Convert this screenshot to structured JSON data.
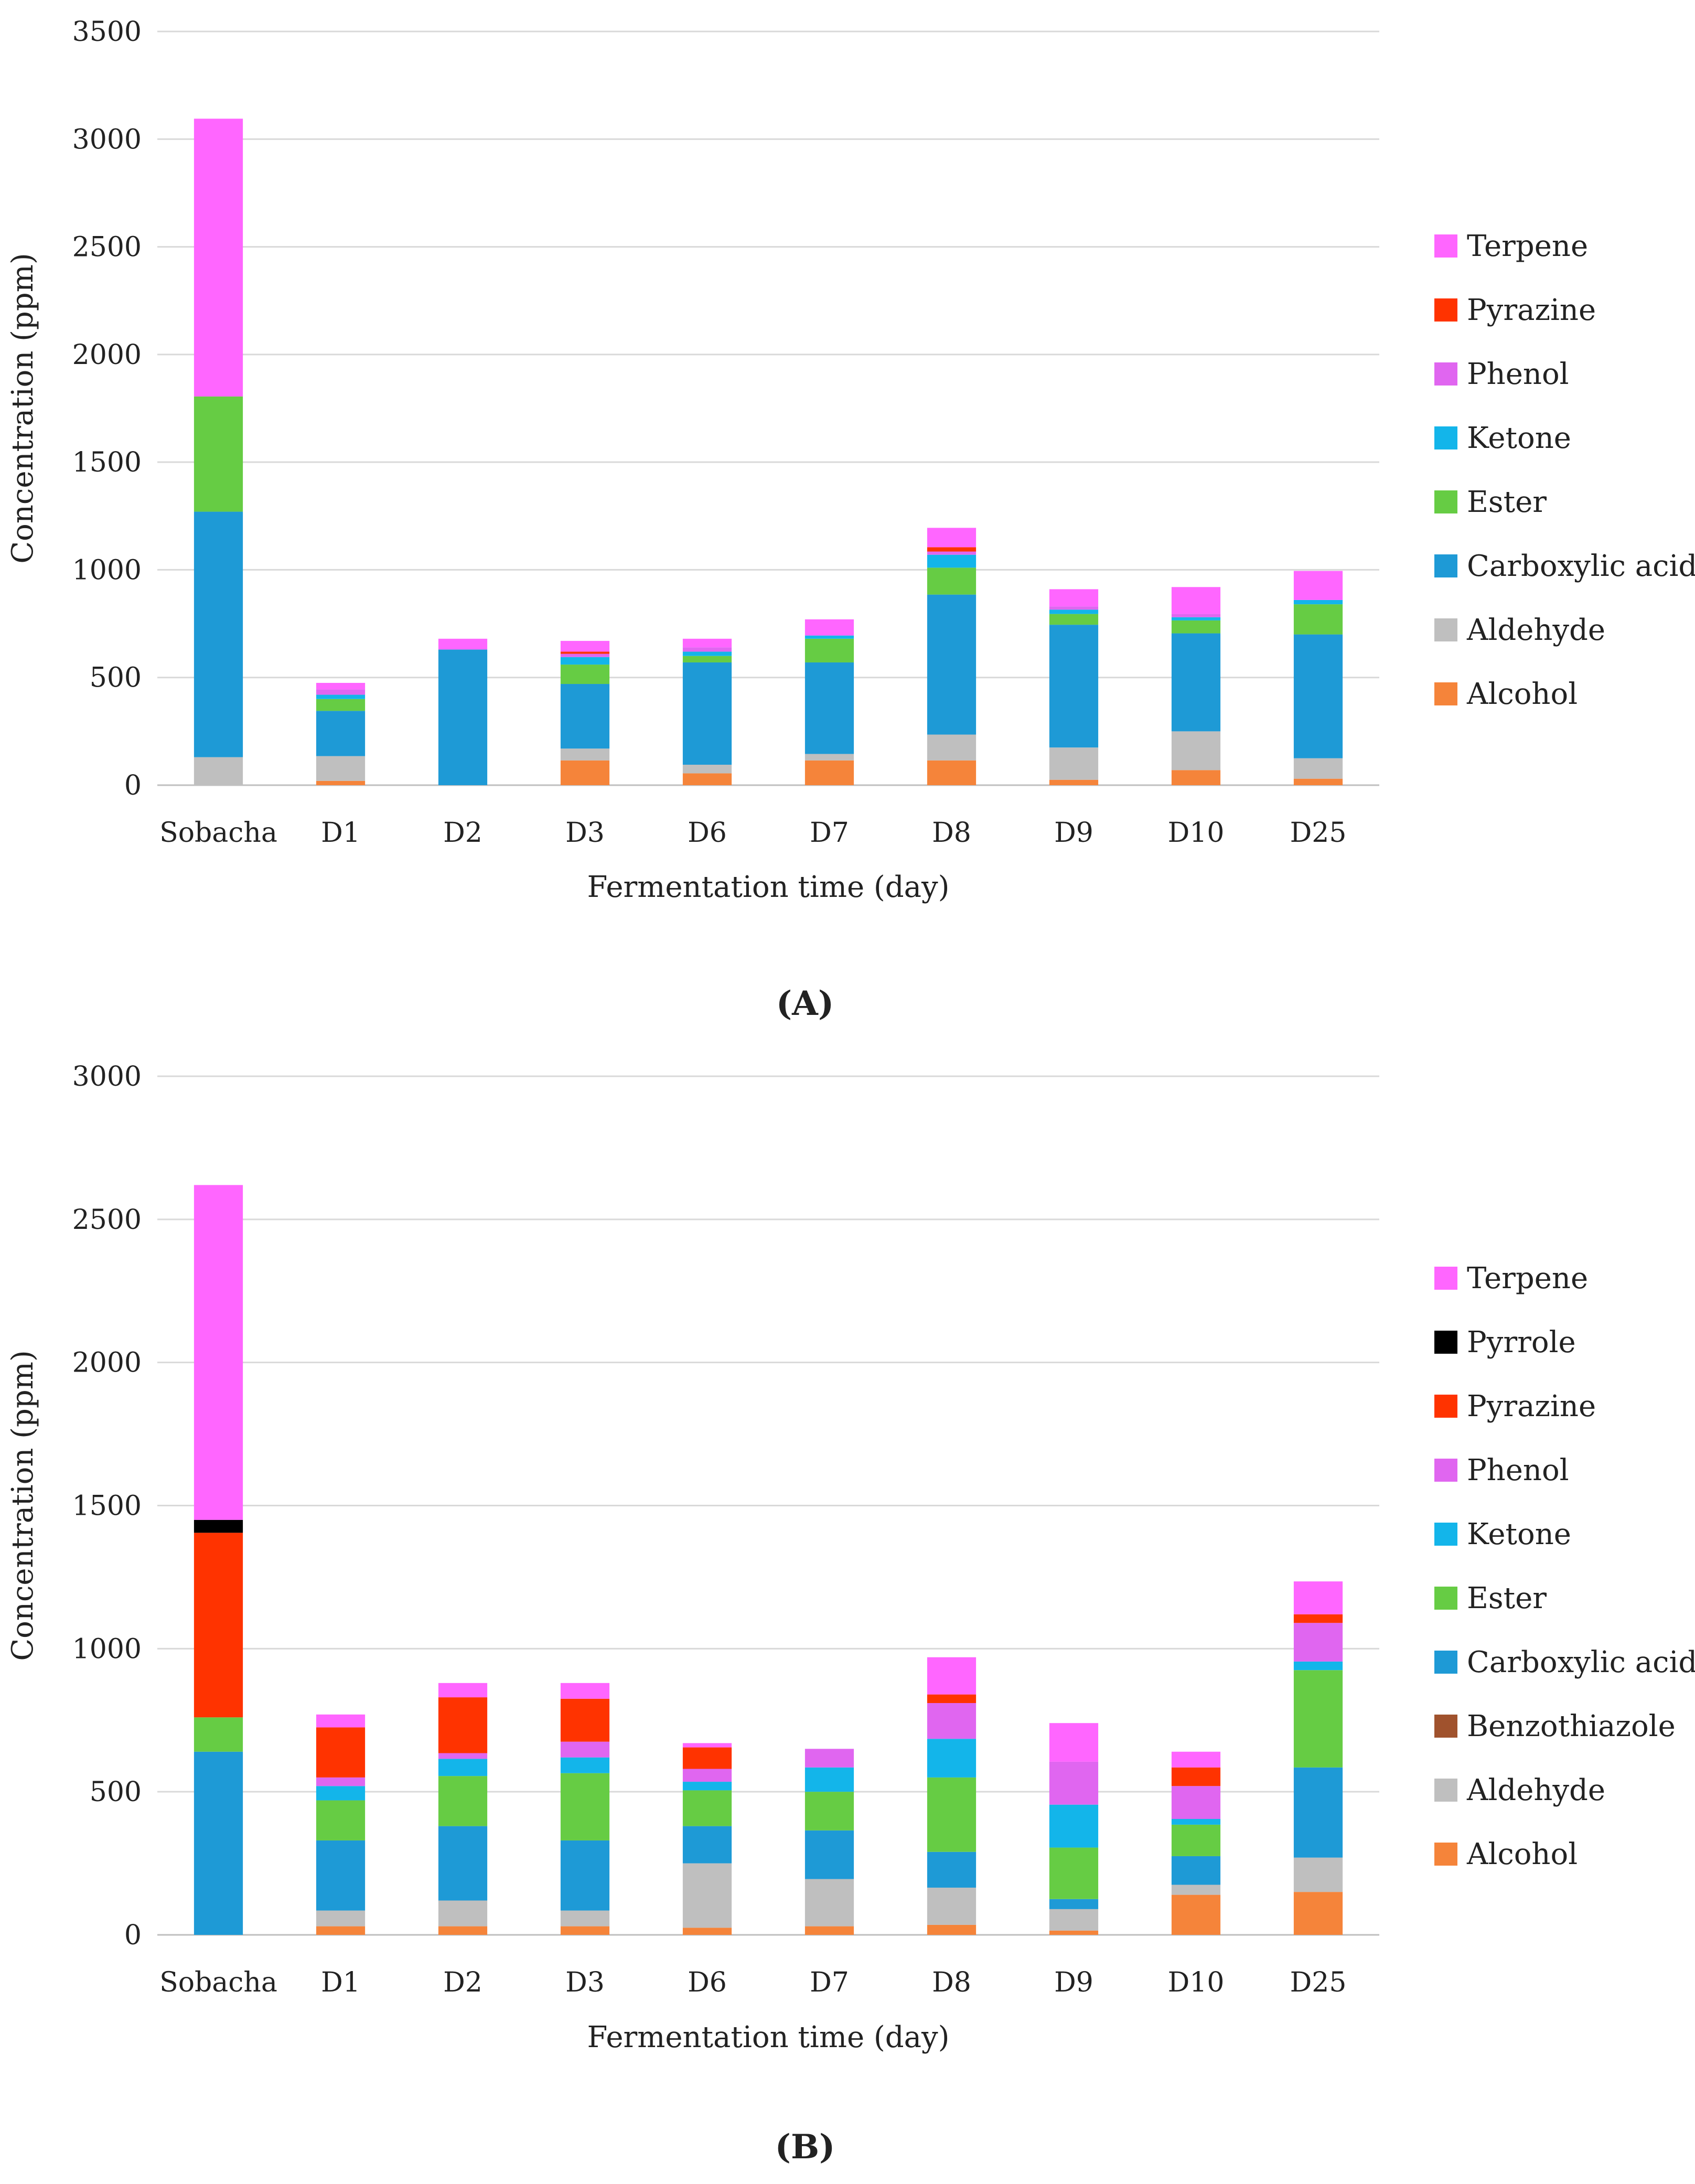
{
  "chart_data": [
    {
      "type": "bar",
      "stacked": true,
      "panel_label": "(A)",
      "xlabel": "Fermentation time (day)",
      "ylabel": "Concentration (ppm)",
      "ylim": [
        0,
        3500
      ],
      "yticks": [
        0,
        500,
        1000,
        1500,
        2000,
        2500,
        3000,
        3500
      ],
      "grid": true,
      "legend_position": "right",
      "categories": [
        "Sobacha",
        "D1",
        "D2",
        "D3",
        "D6",
        "D7",
        "D8",
        "D9",
        "D10",
        "D25"
      ],
      "series": [
        {
          "name": "Alcohol",
          "color": "#f5843a",
          "values": [
            0,
            20,
            0,
            115,
            55,
            115,
            115,
            25,
            70,
            30
          ]
        },
        {
          "name": "Aldehyde",
          "color": "#bfbfbf",
          "values": [
            130,
            115,
            0,
            55,
            40,
            30,
            120,
            150,
            180,
            95
          ]
        },
        {
          "name": "Carboxylic acid",
          "color": "#1e9ad6",
          "values": [
            1140,
            210,
            630,
            300,
            475,
            425,
            650,
            570,
            455,
            575
          ]
        },
        {
          "name": "Ester",
          "color": "#66cc44",
          "values": [
            535,
            55,
            0,
            90,
            30,
            110,
            125,
            50,
            60,
            140
          ]
        },
        {
          "name": "Ketone",
          "color": "#13b5ea",
          "values": [
            0,
            20,
            0,
            35,
            20,
            15,
            60,
            20,
            15,
            20
          ]
        },
        {
          "name": "Phenol",
          "color": "#e066f0",
          "values": [
            0,
            25,
            0,
            15,
            20,
            0,
            15,
            15,
            15,
            0
          ]
        },
        {
          "name": "Pyrazine",
          "color": "#ff3300",
          "values": [
            0,
            0,
            0,
            10,
            0,
            0,
            20,
            0,
            0,
            0
          ]
        },
        {
          "name": "Terpene",
          "color": "#ff66ff",
          "values": [
            1290,
            30,
            50,
            50,
            40,
            75,
            90,
            80,
            125,
            135
          ]
        }
      ],
      "legend_order": [
        "Terpene",
        "Pyrazine",
        "Phenol",
        "Ketone",
        "Ester",
        "Carboxylic acid",
        "Aldehyde",
        "Alcohol"
      ]
    },
    {
      "type": "bar",
      "stacked": true,
      "panel_label": "(B)",
      "xlabel": "Fermentation time (day)",
      "ylabel": "Concentration (ppm)",
      "ylim": [
        0,
        3000
      ],
      "yticks": [
        0,
        500,
        1000,
        1500,
        2000,
        2500,
        3000
      ],
      "grid": true,
      "legend_position": "right",
      "categories": [
        "Sobacha",
        "D1",
        "D2",
        "D3",
        "D6",
        "D7",
        "D8",
        "D9",
        "D10",
        "D25"
      ],
      "series": [
        {
          "name": "Alcohol",
          "color": "#f5843a",
          "values": [
            0,
            30,
            30,
            30,
            25,
            30,
            35,
            15,
            140,
            150
          ]
        },
        {
          "name": "Aldehyde",
          "color": "#bfbfbf",
          "values": [
            0,
            55,
            90,
            55,
            225,
            165,
            130,
            75,
            35,
            120
          ]
        },
        {
          "name": "Benzothiazole",
          "color": "#a0522d",
          "values": [
            0,
            0,
            0,
            0,
            0,
            0,
            0,
            0,
            0,
            0
          ]
        },
        {
          "name": "Carboxylic acid",
          "color": "#1e9ad6",
          "values": [
            640,
            245,
            260,
            245,
            130,
            170,
            125,
            35,
            100,
            315
          ]
        },
        {
          "name": "Ester",
          "color": "#66cc44",
          "values": [
            120,
            140,
            175,
            235,
            125,
            135,
            260,
            180,
            110,
            340
          ]
        },
        {
          "name": "Ketone",
          "color": "#13b5ea",
          "values": [
            0,
            50,
            60,
            55,
            30,
            85,
            135,
            150,
            20,
            30
          ]
        },
        {
          "name": "Phenol",
          "color": "#e066f0",
          "values": [
            0,
            30,
            20,
            55,
            45,
            65,
            125,
            150,
            115,
            135
          ]
        },
        {
          "name": "Pyrazine",
          "color": "#ff3300",
          "values": [
            645,
            175,
            195,
            150,
            75,
            0,
            30,
            0,
            65,
            30
          ]
        },
        {
          "name": "Pyrrole",
          "color": "#000000",
          "values": [
            45,
            0,
            0,
            0,
            0,
            0,
            0,
            0,
            0,
            0
          ]
        },
        {
          "name": "Terpene",
          "color": "#ff66ff",
          "values": [
            1170,
            45,
            50,
            55,
            15,
            0,
            130,
            135,
            55,
            115
          ]
        }
      ],
      "legend_order": [
        "Terpene",
        "Pyrrole",
        "Pyrazine",
        "Phenol",
        "Ketone",
        "Ester",
        "Carboxylic acid",
        "Benzothiazole",
        "Aldehyde",
        "Alcohol"
      ]
    }
  ]
}
